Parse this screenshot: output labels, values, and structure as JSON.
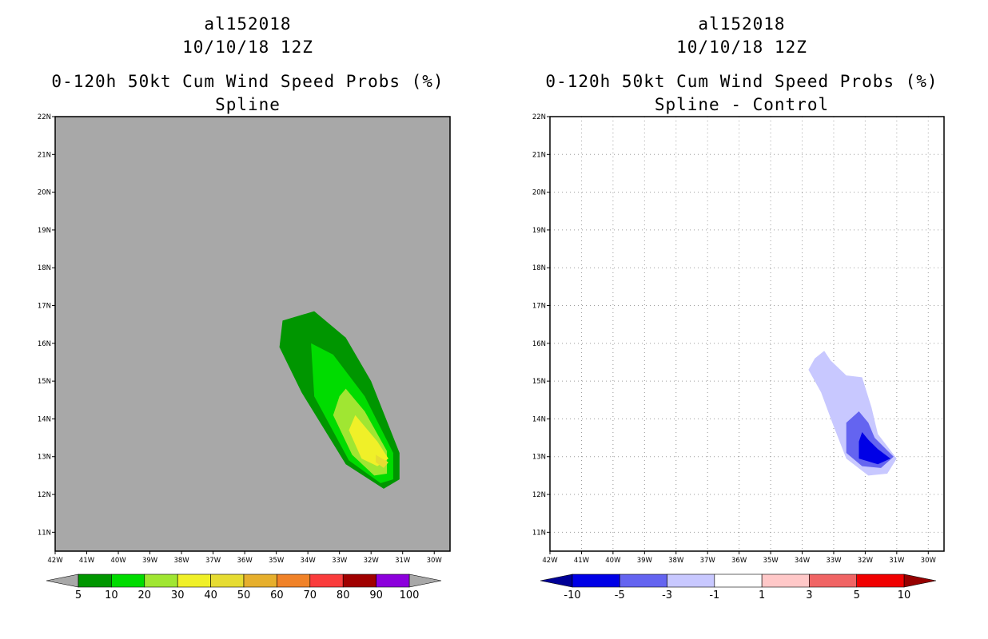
{
  "chart_data": [
    {
      "type": "contour-map",
      "storm_id": "al152018",
      "datetime": "10/10/18 12Z",
      "title": "0-120h 50kt Cum Wind Speed Probs (%)",
      "subtitle": "Spline",
      "lon_ticks": [
        "42W",
        "41W",
        "40W",
        "39W",
        "38W",
        "37W",
        "36W",
        "35W",
        "34W",
        "33W",
        "32W",
        "31W",
        "30W"
      ],
      "lat_ticks": [
        "22N",
        "21N",
        "20N",
        "19N",
        "18N",
        "17N",
        "16N",
        "15N",
        "14N",
        "13N",
        "12N",
        "11N"
      ],
      "lon_range": [
        -42,
        -29.5
      ],
      "lat_range": [
        10.5,
        22
      ],
      "background_color": "#a8a8a8",
      "gridlines": false,
      "colorbar": {
        "labels": [
          "5",
          "10",
          "20",
          "30",
          "40",
          "50",
          "60",
          "70",
          "80",
          "90",
          "100"
        ],
        "colors": [
          "#009600",
          "#00dc00",
          "#a0e632",
          "#f0f028",
          "#e6dc32",
          "#e6af2d",
          "#f08228",
          "#fa3c3c",
          "#a00000",
          "#8c00dc"
        ],
        "extend_low_color": "#a8a8a8",
        "extend_high_color": "#a8a8a8"
      },
      "contours": [
        {
          "level": 5,
          "color": "#009600",
          "polygon": [
            [
              -34.8,
              16.6
            ],
            [
              -33.8,
              16.85
            ],
            [
              -32.8,
              16.15
            ],
            [
              -32.0,
              15.0
            ],
            [
              -31.1,
              13.1
            ],
            [
              -31.1,
              12.4
            ],
            [
              -31.6,
              12.15
            ],
            [
              -32.8,
              12.8
            ],
            [
              -34.2,
              14.7
            ],
            [
              -34.9,
              15.9
            ]
          ]
        },
        {
          "level": 10,
          "color": "#00dc00",
          "polygon": [
            [
              -33.9,
              16.0
            ],
            [
              -33.2,
              15.7
            ],
            [
              -32.2,
              14.6
            ],
            [
              -31.3,
              13.1
            ],
            [
              -31.3,
              12.4
            ],
            [
              -31.7,
              12.3
            ],
            [
              -32.7,
              12.9
            ],
            [
              -33.8,
              14.6
            ]
          ]
        },
        {
          "level": 20,
          "color": "#a0e632",
          "polygon": [
            [
              -32.8,
              14.8
            ],
            [
              -32.2,
              14.2
            ],
            [
              -31.5,
              13.15
            ],
            [
              -31.5,
              12.55
            ],
            [
              -31.9,
              12.5
            ],
            [
              -32.6,
              13.05
            ],
            [
              -33.2,
              14.1
            ],
            [
              -33.0,
              14.6
            ]
          ]
        },
        {
          "level": 30,
          "color": "#f0f028",
          "polygon": [
            [
              -32.5,
              14.1
            ],
            [
              -31.8,
              13.4
            ],
            [
              -31.45,
              12.95
            ],
            [
              -31.8,
              12.75
            ],
            [
              -32.3,
              12.95
            ],
            [
              -32.7,
              13.7
            ]
          ]
        },
        {
          "level": 40,
          "color": "#e6dc32",
          "polygon": [
            [
              -31.85,
              13.05
            ],
            [
              -31.45,
              12.85
            ],
            [
              -31.6,
              12.7
            ],
            [
              -31.85,
              12.85
            ]
          ]
        }
      ]
    },
    {
      "type": "contour-map",
      "storm_id": "al152018",
      "datetime": "10/10/18 12Z",
      "title": "0-120h 50kt Cum Wind Speed Probs (%)",
      "subtitle": "Spline - Control",
      "lon_ticks": [
        "42W",
        "41W",
        "40W",
        "39W",
        "38W",
        "37W",
        "36W",
        "35W",
        "34W",
        "33W",
        "32W",
        "31W",
        "30W"
      ],
      "lat_ticks": [
        "22N",
        "21N",
        "20N",
        "19N",
        "18N",
        "17N",
        "16N",
        "15N",
        "14N",
        "13N",
        "12N",
        "11N"
      ],
      "lon_range": [
        -42,
        -29.5
      ],
      "lat_range": [
        10.5,
        22
      ],
      "background_color": "#ffffff",
      "gridlines": true,
      "colorbar": {
        "labels": [
          "-10",
          "-5",
          "-3",
          "-1",
          "1",
          "3",
          "5",
          "10"
        ],
        "colors": [
          "#0000e6",
          "#6464f0",
          "#c8c8ff",
          "#ffffff",
          "#ffc8c8",
          "#f06464",
          "#f00000"
        ],
        "extend_low_color": "#000096",
        "extend_high_color": "#960000"
      },
      "contours": [
        {
          "level": -1,
          "color": "#c8c8ff",
          "polygon": [
            [
              -33.3,
              15.8
            ],
            [
              -33.1,
              15.55
            ],
            [
              -32.6,
              15.15
            ],
            [
              -32.1,
              15.1
            ],
            [
              -31.8,
              14.3
            ],
            [
              -31.6,
              13.6
            ],
            [
              -31.0,
              12.95
            ],
            [
              -31.3,
              12.55
            ],
            [
              -31.9,
              12.5
            ],
            [
              -32.6,
              12.95
            ],
            [
              -33.0,
              13.8
            ],
            [
              -33.4,
              14.7
            ],
            [
              -33.8,
              15.3
            ],
            [
              -33.6,
              15.6
            ]
          ]
        },
        {
          "level": -3,
          "color": "#6464f0",
          "polygon": [
            [
              -32.2,
              14.2
            ],
            [
              -31.9,
              13.9
            ],
            [
              -31.7,
              13.5
            ],
            [
              -31.1,
              13.0
            ],
            [
              -31.5,
              12.7
            ],
            [
              -32.1,
              12.75
            ],
            [
              -32.6,
              13.1
            ],
            [
              -32.6,
              13.9
            ]
          ]
        },
        {
          "level": -5,
          "color": "#0000e6",
          "polygon": [
            [
              -32.1,
              13.65
            ],
            [
              -31.9,
              13.45
            ],
            [
              -31.6,
              13.2
            ],
            [
              -31.2,
              12.95
            ],
            [
              -31.6,
              12.8
            ],
            [
              -32.2,
              12.95
            ],
            [
              -32.2,
              13.4
            ]
          ]
        }
      ]
    }
  ]
}
